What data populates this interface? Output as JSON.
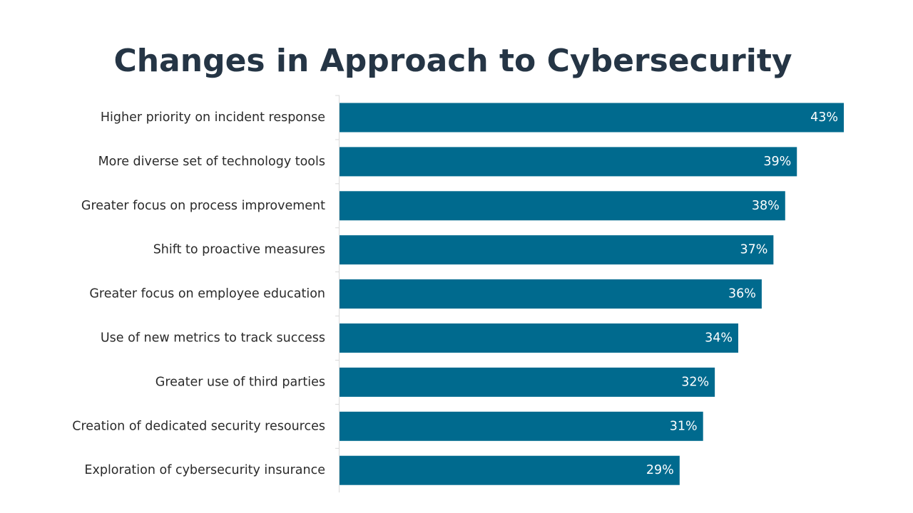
{
  "colors": {
    "bar": "#006a8e",
    "title": "#253545",
    "axis_line": "#d9d9d9"
  },
  "chart_data": {
    "type": "bar",
    "orientation": "horizontal",
    "title": "Changes in Approach to Cybersecurity",
    "categories": [
      "Higher priority on incident response",
      "More diverse set of technology tools",
      "Greater focus on process improvement",
      "Shift to proactive measures",
      "Greater focus on employee education",
      "Use of new metrics to track success",
      "Greater use of third parties",
      "Creation of dedicated security resources",
      "Exploration of cybersecurity insurance"
    ],
    "values": [
      43,
      39,
      38,
      37,
      36,
      34,
      32,
      31,
      29
    ],
    "value_labels": [
      "43%",
      "39%",
      "38%",
      "37%",
      "36%",
      "34%",
      "32%",
      "31%",
      "29%"
    ],
    "xlim": [
      0,
      43
    ],
    "grid": false,
    "legend": "none"
  }
}
